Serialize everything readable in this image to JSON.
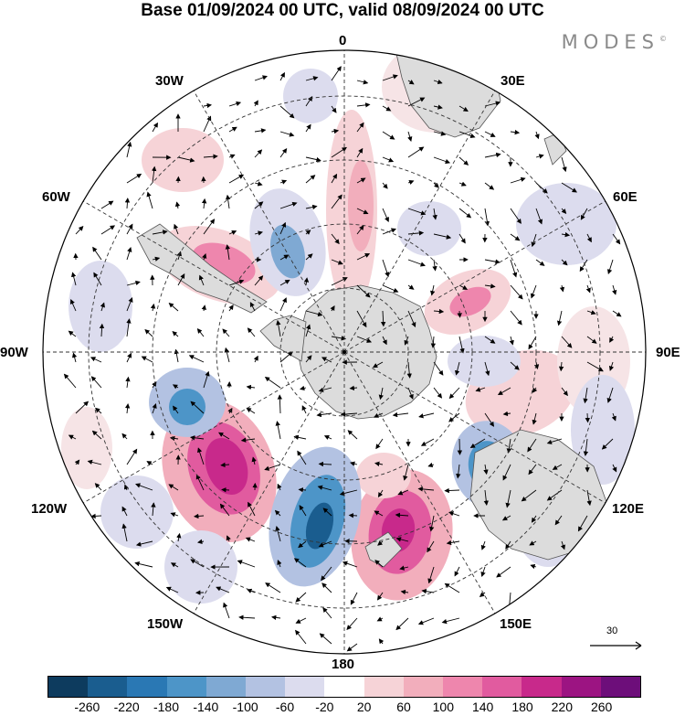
{
  "title": "Base 01/09/2024 00 UTC, valid 08/09/2024 00 UTC",
  "brand": "MODES",
  "brand_mark": "©",
  "map": {
    "projection": "south polar stereographic",
    "longitude_labels": {
      "lon_0": "0",
      "lon_30e": "30E",
      "lon_60e": "60E",
      "lon_90e": "90E",
      "lon_120e": "120E",
      "lon_150e": "150E",
      "lon_180": "180",
      "lon_150w": "150W",
      "lon_120w": "120W",
      "lon_90w": "90W",
      "lon_60w": "60W",
      "lon_30w": "30W"
    },
    "reference_vector": {
      "value": "30"
    },
    "field_colors": {
      "land": "#dcdcdc",
      "coast": "#555555"
    }
  },
  "colorbar": {
    "ticks": [
      "-260",
      "-220",
      "-180",
      "-140",
      "-100",
      "-60",
      "-20",
      "20",
      "60",
      "100",
      "140",
      "180",
      "220",
      "260"
    ],
    "colors": [
      "#0d3b5e",
      "#1a5d8f",
      "#2a78b4",
      "#4d95c8",
      "#7fa9d3",
      "#b3c2e2",
      "#dcdcee",
      "#ffffff",
      "#f6d3d7",
      "#f2aebc",
      "#ee86ad",
      "#e15b9f",
      "#c8298b",
      "#9c1482",
      "#6d0e7a"
    ]
  }
}
